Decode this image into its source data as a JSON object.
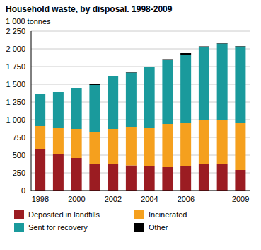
{
  "chart_data": {
    "type": "bar",
    "title": "Household waste, by disposal. 1998-2009",
    "y_label": "1 000 tonnes",
    "stacked": true,
    "grid": true,
    "legend": "bottom",
    "categories": [
      "1998",
      null,
      "2000",
      null,
      "2002",
      null,
      "2004",
      null,
      "2006",
      null,
      null,
      "2009"
    ],
    "series": [
      {
        "name": "Deposited in landfills",
        "color": "#9b1c22",
        "values": [
          590,
          520,
          460,
          380,
          380,
          355,
          340,
          330,
          350,
          380,
          375,
          290
        ]
      },
      {
        "name": "Incinerated",
        "color": "#f5a01e",
        "values": [
          320,
          360,
          410,
          450,
          490,
          545,
          540,
          610,
          610,
          620,
          615,
          670
        ]
      },
      {
        "name": "Sent for recovery",
        "color": "#1a9a9c",
        "values": [
          450,
          510,
          580,
          660,
          740,
          765,
          860,
          900,
          960,
          1020,
          1085,
          1075
        ]
      },
      {
        "name": "Other",
        "color": "#000000",
        "values": [
          0,
          0,
          0,
          15,
          5,
          5,
          10,
          5,
          20,
          15,
          5,
          5
        ]
      }
    ],
    "ylim": [
      0,
      2250
    ],
    "yticks": [
      0,
      250,
      500,
      750,
      {
        "value": 1000,
        "label": "1 000"
      },
      {
        "value": 1250,
        "label": "1 250"
      },
      {
        "value": 1500,
        "label": "1 500"
      },
      {
        "value": 1750,
        "label": "1 750"
      },
      {
        "value": 2000,
        "label": "2 000"
      },
      {
        "value": 2250,
        "label": "2 250"
      }
    ]
  }
}
